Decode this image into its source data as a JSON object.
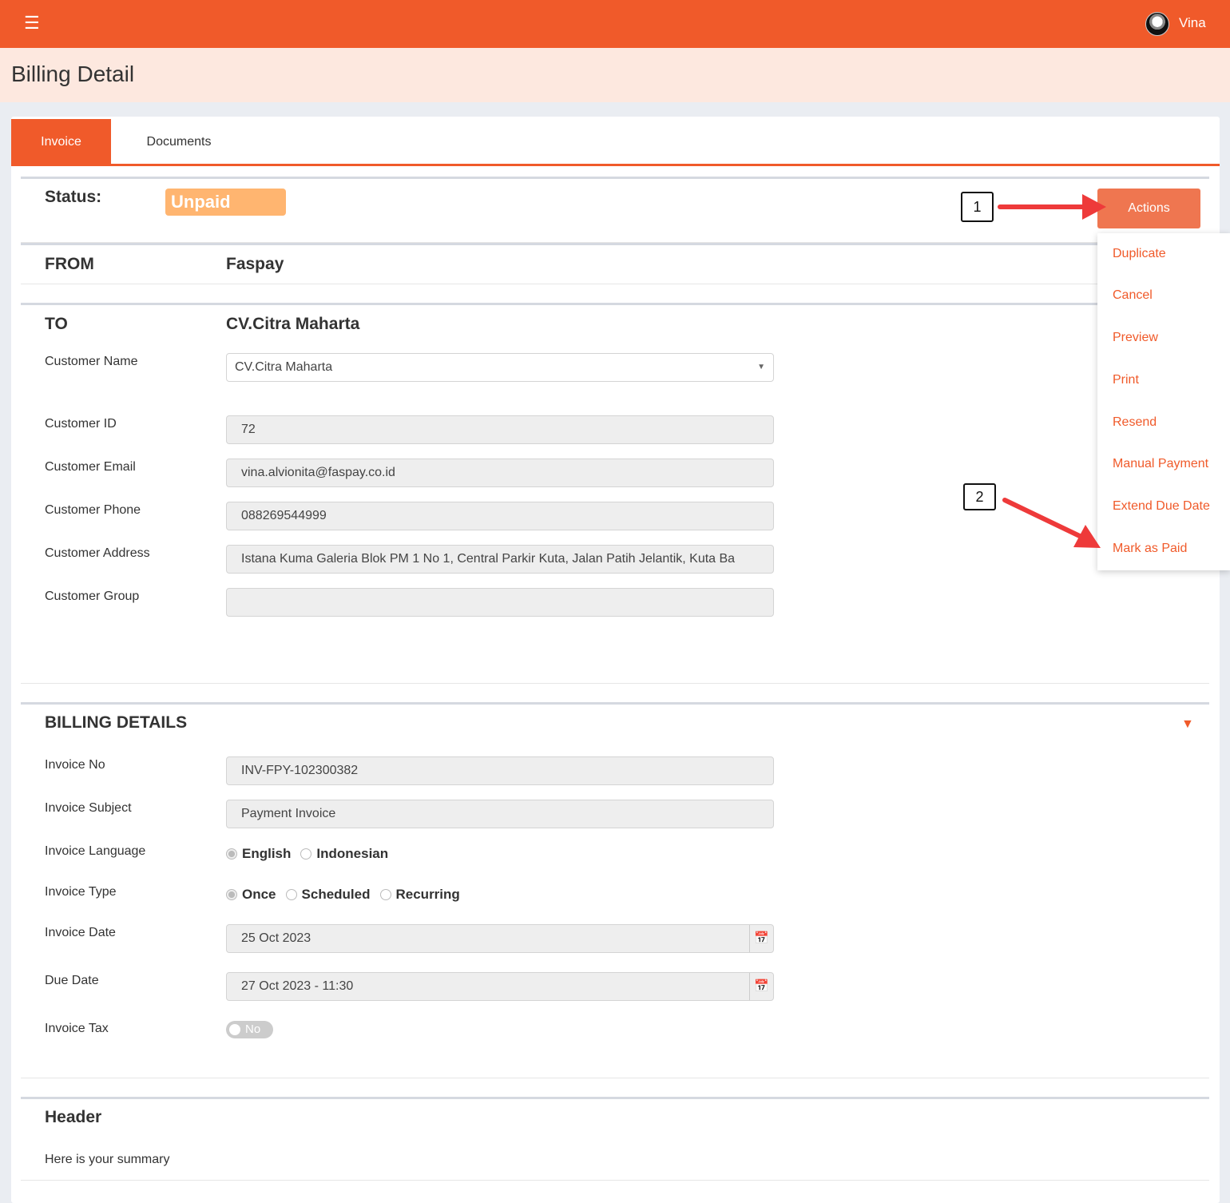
{
  "topbar": {
    "user": "Vina",
    "menu_icon": "hamburger-icon"
  },
  "page_title": "Billing Detail",
  "tabs": [
    "Invoice",
    "Documents"
  ],
  "status": {
    "label": "Status:",
    "value": "Unpaid",
    "color": "#ffb570"
  },
  "actions": {
    "label": "Actions",
    "items": [
      "Duplicate",
      "Cancel",
      "Preview",
      "Print",
      "Resend",
      "Manual Payment",
      "Extend Due Date",
      "Mark as Paid"
    ]
  },
  "annotations": [
    "1",
    "2"
  ],
  "from": {
    "label": "FROM",
    "value": "Faspay"
  },
  "to": {
    "label": "TO",
    "value": "CV.Citra Maharta",
    "fields": [
      {
        "label": "Customer Name",
        "value": "CV.Citra Maharta"
      },
      {
        "label": "Customer ID",
        "value": "72"
      },
      {
        "label": "Customer Email",
        "value": "vina.alvionita@faspay.co.id"
      },
      {
        "label": "Customer Phone",
        "value": "088269544999"
      },
      {
        "label": "Customer Address",
        "value": "Istana Kuma Galeria Blok PM 1 No 1, Central Parkir Kuta, Jalan Patih Jelantik, Kuta Ba"
      },
      {
        "label": "Customer Group",
        "value": ""
      }
    ]
  },
  "billing": {
    "title": "BILLING DETAILS",
    "invoice_no": {
      "label": "Invoice No",
      "value": "INV-FPY-102300382"
    },
    "subject": {
      "label": "Invoice Subject",
      "value": "Payment Invoice"
    },
    "language": {
      "label": "Invoice Language",
      "options": [
        "English",
        "Indonesian"
      ],
      "selected": "English"
    },
    "type": {
      "label": "Invoice Type",
      "options": [
        "Once",
        "Scheduled",
        "Recurring"
      ],
      "selected": "Once"
    },
    "date": {
      "label": "Invoice Date",
      "value": "25 Oct 2023"
    },
    "due": {
      "label": "Due Date",
      "value": "27 Oct 2023 - 11:30"
    },
    "tax": {
      "label": "Invoice Tax",
      "value": "No"
    }
  },
  "header": {
    "title": "Header",
    "text": "Here is your summary"
  },
  "colors": {
    "brand": "#f05a2a",
    "annotation_arrow": "#ee3a3a"
  }
}
